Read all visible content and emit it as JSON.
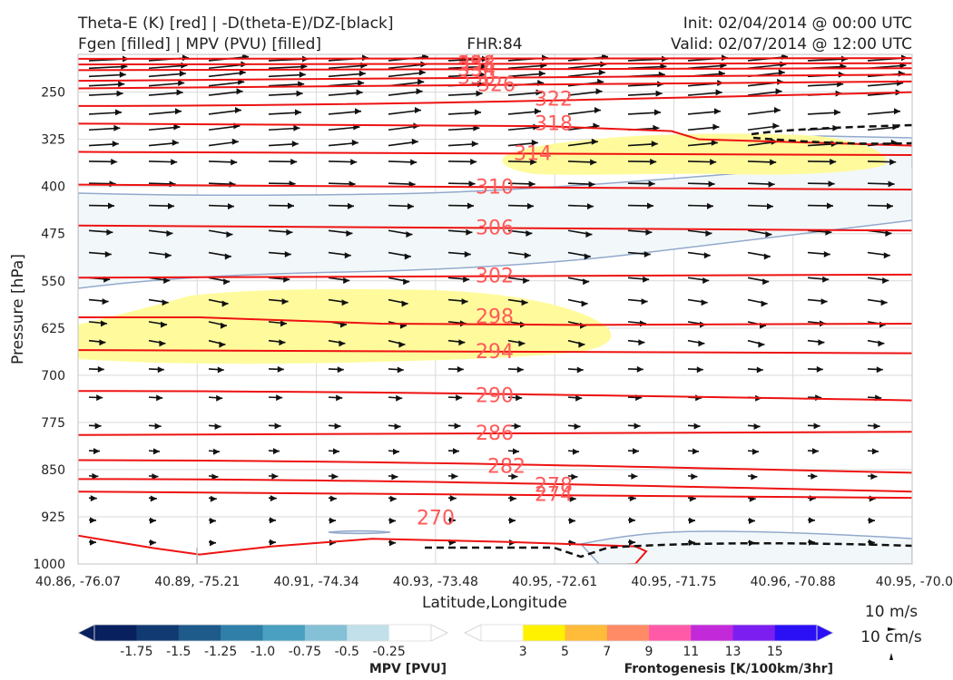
{
  "header": {
    "title_left_1": "Theta-E (K) [red] | -D(theta-E)/DZ-[black]",
    "title_left_2": "Fgen [filled] | MPV (PVU) [filled]",
    "title_center": "FHR:84",
    "title_right_1": "Init: 02/04/2014 @ 00:00 UTC",
    "title_right_2": "Valid: 02/07/2014 @ 12:00 UTC"
  },
  "chart_data": {
    "type": "cross-section",
    "xlabel": "Latitude,Longitude",
    "ylabel": "Pressure [hPa]",
    "x_ticks": [
      "40.86, -76.07",
      "40.89, -75.21",
      "40.91, -74.34",
      "40.93, -73.48",
      "40.95, -72.61",
      "40.95, -71.75",
      "40.96, -70.88",
      "40.95, -70.0"
    ],
    "y_ticks": [
      250,
      325,
      400,
      475,
      550,
      625,
      700,
      775,
      850,
      925,
      1000
    ],
    "ylim": [
      1000,
      190
    ],
    "theta_e_contours": [
      {
        "value": 342,
        "pressure_left": 197,
        "pressure_right": 196,
        "labeled": true
      },
      {
        "value": 338,
        "pressure_left": 206,
        "pressure_right": 204,
        "labeled": true
      },
      {
        "value": 334,
        "pressure_left": 215,
        "pressure_right": 212,
        "labeled": true
      },
      {
        "value": 330,
        "pressure_left": 232,
        "pressure_right": 222,
        "labeled": true
      },
      {
        "value": 326,
        "pressure_left": 244,
        "pressure_right": 233,
        "labeled": true
      },
      {
        "value": 322,
        "pressure_left": 272,
        "pressure_right": 250,
        "labeled": true
      },
      {
        "value": 318,
        "pressure_left": 300,
        "pressure_right": 300,
        "labeled": true
      },
      {
        "value": 314,
        "pressure_left": 345,
        "pressure_right": 350,
        "labeled": true
      },
      {
        "value": 310,
        "pressure_left": 397,
        "pressure_right": 405,
        "labeled": true
      },
      {
        "value": 306,
        "pressure_left": 462,
        "pressure_right": 470,
        "labeled": true
      },
      {
        "value": 302,
        "pressure_left": 545,
        "pressure_right": 540,
        "labeled": true
      },
      {
        "value": 298,
        "pressure_left": 610,
        "pressure_right": 605,
        "labeled": true
      },
      {
        "value": 294,
        "pressure_left": 660,
        "pressure_right": 665,
        "labeled": true
      },
      {
        "value": 290,
        "pressure_left": 725,
        "pressure_right": 740,
        "labeled": true
      },
      {
        "value": 286,
        "pressure_left": 795,
        "pressure_right": 790,
        "labeled": true
      },
      {
        "value": 282,
        "pressure_left": 835,
        "pressure_right": 855,
        "labeled": true
      },
      {
        "value": 278,
        "pressure_left": 865,
        "pressure_right": 885,
        "labeled": true
      },
      {
        "value": 274,
        "pressure_left": 885,
        "pressure_right": 895,
        "labeled": true
      },
      {
        "value": 270,
        "pressure_left": 915,
        "pressure_right": 940,
        "labeled": true
      }
    ],
    "mpv_colorbar": {
      "label": "MPV [PVU]",
      "ticks": [
        "-1.75",
        "-1.5",
        "-1.25",
        "-1.0",
        "-0.75",
        "-0.5",
        "-0.25"
      ],
      "colors": [
        "#08205e",
        "#123a72",
        "#1e5a8a",
        "#2f7fa8",
        "#4aa0c0",
        "#84c0d6",
        "#c2e0ea",
        "#ffffff"
      ]
    },
    "fgen_colorbar": {
      "label": "Frontogenesis [K/100km/3hr]",
      "ticks": [
        "3",
        "5",
        "7",
        "9",
        "11",
        "13",
        "15"
      ],
      "colors": [
        "#ffffff",
        "#fff200",
        "#ffbb3a",
        "#ff8a66",
        "#ff5aa8",
        "#c229d9",
        "#7d1ef0",
        "#2b10f5"
      ]
    },
    "reference_vectors": [
      "10 m/s",
      "10 cm/s"
    ],
    "shading_colors": {
      "mpv_light": "#f2f8f9",
      "mpv_edge": "#93a9cc",
      "fgen_yellow": "#fffb9c",
      "theta_e": "#ee1212",
      "label": "#ff5a5a"
    }
  }
}
